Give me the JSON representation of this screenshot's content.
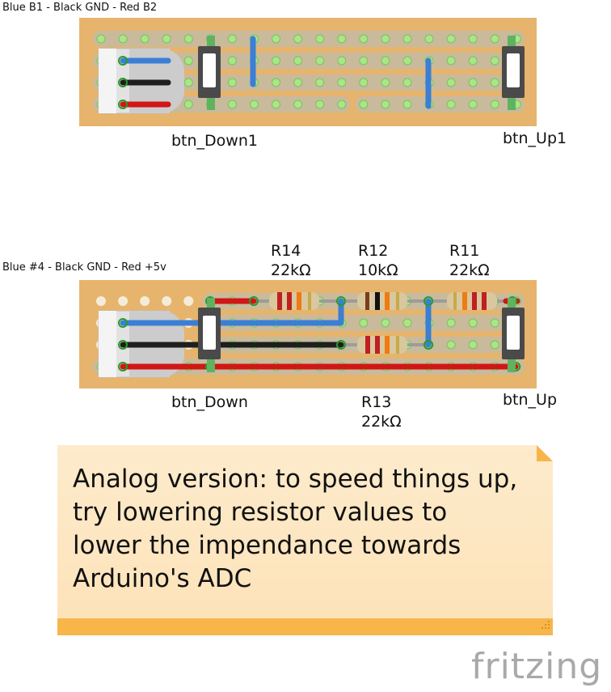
{
  "board_top": {
    "caption": "Blue B1 - Black GND - Red B2",
    "buttons": [
      {
        "label": "btn_Down1"
      },
      {
        "label": "btn_Up1"
      }
    ]
  },
  "board_bottom": {
    "caption": "Blue #4 - Black GND - Red +5v",
    "buttons": [
      {
        "label": "btn_Down"
      },
      {
        "label": "btn_Up"
      }
    ],
    "resistors": [
      {
        "name": "R14",
        "value": "22kΩ"
      },
      {
        "name": "R12",
        "value": "10kΩ"
      },
      {
        "name": "R11",
        "value": "22kΩ"
      },
      {
        "name": "R13",
        "value": "22kΩ"
      }
    ]
  },
  "note": {
    "lines": [
      "Analog version: to speed things up,",
      "try lowering resistor values to",
      "lower the impendance towards",
      "Arduino's ADC"
    ]
  },
  "logo": {
    "text": "fritzing"
  },
  "colors": {
    "board": "#e6b46c",
    "strip": "#c9ba9c",
    "hole": "#a8e686",
    "wire_blue": "#3a7fd5",
    "wire_black": "#1e1e1e",
    "wire_red": "#d01616",
    "note_bg": "#fde6c4",
    "note_bar": "#f8b54a"
  }
}
